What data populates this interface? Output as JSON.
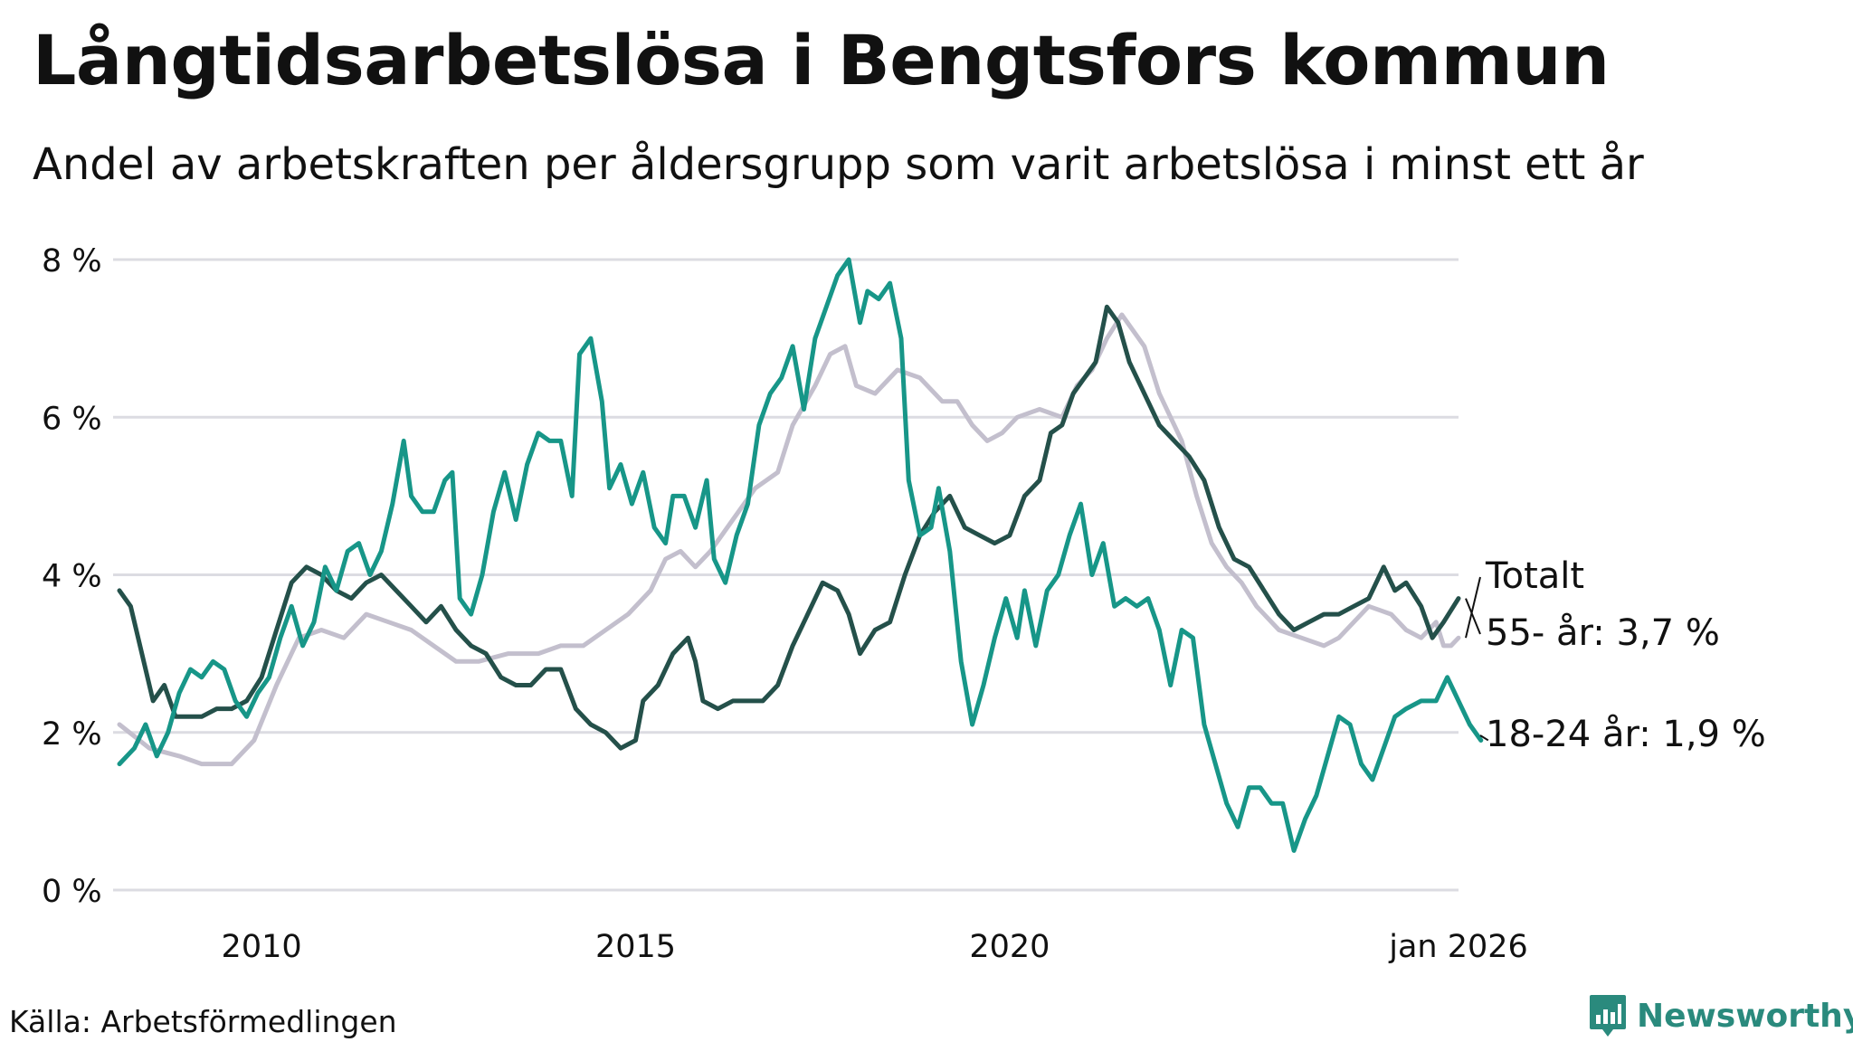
{
  "title": "Långtidsarbetslösa i Bengtsfors kommun",
  "subtitle": "Andel av arbetskraften per åldersgrupp som varit arbetslösa i minst ett år",
  "source": "Källa: Arbetsförmedlingen",
  "brand": "Newsworthy",
  "colors": {
    "total": "#c3bfcd",
    "older": "#24504a",
    "young": "#179688",
    "grid": "#dcdce2"
  },
  "chart_data": {
    "type": "line",
    "ylim": [
      0,
      8
    ],
    "xlim": [
      2008.1,
      2026.0
    ],
    "y_ticks": [
      0,
      2,
      4,
      6,
      8
    ],
    "y_tick_labels": [
      "0 %",
      "2 %",
      "4 %",
      "6 %",
      "8 %"
    ],
    "x_ticks": [
      2010,
      2015,
      2020,
      2026.0
    ],
    "x_tick_labels": [
      "2010",
      "2015",
      "2020",
      "jan 2026"
    ],
    "grid": true,
    "series": [
      {
        "name": "Totalt",
        "label": "Totalt",
        "color": "#c3bfcd",
        "points": [
          [
            2008.1,
            2.1
          ],
          [
            2008.5,
            1.8
          ],
          [
            2008.9,
            1.7
          ],
          [
            2009.2,
            1.6
          ],
          [
            2009.6,
            1.6
          ],
          [
            2009.9,
            1.9
          ],
          [
            2010.2,
            2.6
          ],
          [
            2010.5,
            3.2
          ],
          [
            2010.8,
            3.3
          ],
          [
            2011.1,
            3.2
          ],
          [
            2011.4,
            3.5
          ],
          [
            2011.7,
            3.4
          ],
          [
            2012.0,
            3.3
          ],
          [
            2012.3,
            3.1
          ],
          [
            2012.6,
            2.9
          ],
          [
            2012.9,
            2.9
          ],
          [
            2013.3,
            3.0
          ],
          [
            2013.7,
            3.0
          ],
          [
            2014.0,
            3.1
          ],
          [
            2014.3,
            3.1
          ],
          [
            2014.6,
            3.3
          ],
          [
            2014.9,
            3.5
          ],
          [
            2015.2,
            3.8
          ],
          [
            2015.4,
            4.2
          ],
          [
            2015.6,
            4.3
          ],
          [
            2015.8,
            4.1
          ],
          [
            2016.0,
            4.3
          ],
          [
            2016.3,
            4.7
          ],
          [
            2016.6,
            5.1
          ],
          [
            2016.9,
            5.3
          ],
          [
            2017.1,
            5.9
          ],
          [
            2017.4,
            6.4
          ],
          [
            2017.6,
            6.8
          ],
          [
            2017.8,
            6.9
          ],
          [
            2017.95,
            6.4
          ],
          [
            2018.2,
            6.3
          ],
          [
            2018.5,
            6.6
          ],
          [
            2018.8,
            6.5
          ],
          [
            2019.1,
            6.2
          ],
          [
            2019.3,
            6.2
          ],
          [
            2019.5,
            5.9
          ],
          [
            2019.7,
            5.7
          ],
          [
            2019.9,
            5.8
          ],
          [
            2020.1,
            6.0
          ],
          [
            2020.4,
            6.1
          ],
          [
            2020.7,
            6.0
          ],
          [
            2020.9,
            6.4
          ],
          [
            2021.1,
            6.6
          ],
          [
            2021.3,
            7.0
          ],
          [
            2021.5,
            7.3
          ],
          [
            2021.8,
            6.9
          ],
          [
            2022.0,
            6.3
          ],
          [
            2022.3,
            5.7
          ],
          [
            2022.5,
            5.0
          ],
          [
            2022.7,
            4.4
          ],
          [
            2022.9,
            4.1
          ],
          [
            2023.1,
            3.9
          ],
          [
            2023.3,
            3.6
          ],
          [
            2023.6,
            3.3
          ],
          [
            2023.9,
            3.2
          ],
          [
            2024.2,
            3.1
          ],
          [
            2024.4,
            3.2
          ],
          [
            2024.6,
            3.4
          ],
          [
            2024.8,
            3.6
          ],
          [
            2025.1,
            3.5
          ],
          [
            2025.3,
            3.3
          ],
          [
            2025.5,
            3.2
          ],
          [
            2025.7,
            3.4
          ],
          [
            2025.8,
            3.1
          ],
          [
            2025.9,
            3.1
          ],
          [
            2026.0,
            3.2
          ]
        ]
      },
      {
        "name": "55- år",
        "label": "55- år: 3,7 %",
        "color": "#24504a",
        "points": [
          [
            2008.1,
            3.8
          ],
          [
            2008.25,
            3.6
          ],
          [
            2008.4,
            3.0
          ],
          [
            2008.55,
            2.4
          ],
          [
            2008.7,
            2.6
          ],
          [
            2008.85,
            2.2
          ],
          [
            2009.0,
            2.2
          ],
          [
            2009.2,
            2.2
          ],
          [
            2009.4,
            2.3
          ],
          [
            2009.6,
            2.3
          ],
          [
            2009.8,
            2.4
          ],
          [
            2010.0,
            2.7
          ],
          [
            2010.2,
            3.3
          ],
          [
            2010.4,
            3.9
          ],
          [
            2010.6,
            4.1
          ],
          [
            2010.8,
            4.0
          ],
          [
            2011.0,
            3.8
          ],
          [
            2011.2,
            3.7
          ],
          [
            2011.4,
            3.9
          ],
          [
            2011.6,
            4.0
          ],
          [
            2011.8,
            3.8
          ],
          [
            2012.0,
            3.6
          ],
          [
            2012.2,
            3.4
          ],
          [
            2012.4,
            3.6
          ],
          [
            2012.6,
            3.3
          ],
          [
            2012.8,
            3.1
          ],
          [
            2013.0,
            3.0
          ],
          [
            2013.2,
            2.7
          ],
          [
            2013.4,
            2.6
          ],
          [
            2013.6,
            2.6
          ],
          [
            2013.8,
            2.8
          ],
          [
            2014.0,
            2.8
          ],
          [
            2014.2,
            2.3
          ],
          [
            2014.4,
            2.1
          ],
          [
            2014.6,
            2.0
          ],
          [
            2014.8,
            1.8
          ],
          [
            2015.0,
            1.9
          ],
          [
            2015.1,
            2.4
          ],
          [
            2015.3,
            2.6
          ],
          [
            2015.5,
            3.0
          ],
          [
            2015.7,
            3.2
          ],
          [
            2015.8,
            2.9
          ],
          [
            2015.9,
            2.4
          ],
          [
            2016.1,
            2.3
          ],
          [
            2016.3,
            2.4
          ],
          [
            2016.5,
            2.4
          ],
          [
            2016.7,
            2.4
          ],
          [
            2016.9,
            2.6
          ],
          [
            2017.1,
            3.1
          ],
          [
            2017.3,
            3.5
          ],
          [
            2017.5,
            3.9
          ],
          [
            2017.7,
            3.8
          ],
          [
            2017.85,
            3.5
          ],
          [
            2018.0,
            3.0
          ],
          [
            2018.2,
            3.3
          ],
          [
            2018.4,
            3.4
          ],
          [
            2018.6,
            4.0
          ],
          [
            2018.8,
            4.5
          ],
          [
            2019.0,
            4.8
          ],
          [
            2019.2,
            5.0
          ],
          [
            2019.4,
            4.6
          ],
          [
            2019.6,
            4.5
          ],
          [
            2019.8,
            4.4
          ],
          [
            2020.0,
            4.5
          ],
          [
            2020.2,
            5.0
          ],
          [
            2020.4,
            5.2
          ],
          [
            2020.55,
            5.8
          ],
          [
            2020.7,
            5.9
          ],
          [
            2020.85,
            6.3
          ],
          [
            2021.0,
            6.5
          ],
          [
            2021.15,
            6.7
          ],
          [
            2021.3,
            7.4
          ],
          [
            2021.45,
            7.2
          ],
          [
            2021.6,
            6.7
          ],
          [
            2021.8,
            6.3
          ],
          [
            2022.0,
            5.9
          ],
          [
            2022.2,
            5.7
          ],
          [
            2022.4,
            5.5
          ],
          [
            2022.6,
            5.2
          ],
          [
            2022.8,
            4.6
          ],
          [
            2023.0,
            4.2
          ],
          [
            2023.2,
            4.1
          ],
          [
            2023.4,
            3.8
          ],
          [
            2023.6,
            3.5
          ],
          [
            2023.8,
            3.3
          ],
          [
            2024.0,
            3.4
          ],
          [
            2024.2,
            3.5
          ],
          [
            2024.4,
            3.5
          ],
          [
            2024.6,
            3.6
          ],
          [
            2024.8,
            3.7
          ],
          [
            2025.0,
            4.1
          ],
          [
            2025.15,
            3.8
          ],
          [
            2025.3,
            3.9
          ],
          [
            2025.5,
            3.6
          ],
          [
            2025.65,
            3.2
          ],
          [
            2025.8,
            3.4
          ],
          [
            2026.0,
            3.7
          ]
        ]
      },
      {
        "name": "18-24 år",
        "label": "18-24 år: 1,9 %",
        "color": "#179688",
        "points": [
          [
            2008.1,
            1.6
          ],
          [
            2008.3,
            1.8
          ],
          [
            2008.45,
            2.1
          ],
          [
            2008.6,
            1.7
          ],
          [
            2008.75,
            2.0
          ],
          [
            2008.9,
            2.5
          ],
          [
            2009.05,
            2.8
          ],
          [
            2009.2,
            2.7
          ],
          [
            2009.35,
            2.9
          ],
          [
            2009.5,
            2.8
          ],
          [
            2009.65,
            2.4
          ],
          [
            2009.8,
            2.2
          ],
          [
            2009.95,
            2.5
          ],
          [
            2010.1,
            2.7
          ],
          [
            2010.25,
            3.2
          ],
          [
            2010.4,
            3.6
          ],
          [
            2010.55,
            3.1
          ],
          [
            2010.7,
            3.4
          ],
          [
            2010.85,
            4.1
          ],
          [
            2011.0,
            3.8
          ],
          [
            2011.15,
            4.3
          ],
          [
            2011.3,
            4.4
          ],
          [
            2011.45,
            4.0
          ],
          [
            2011.6,
            4.3
          ],
          [
            2011.75,
            4.9
          ],
          [
            2011.9,
            5.7
          ],
          [
            2012.0,
            5.0
          ],
          [
            2012.15,
            4.8
          ],
          [
            2012.3,
            4.8
          ],
          [
            2012.45,
            5.2
          ],
          [
            2012.55,
            5.3
          ],
          [
            2012.65,
            3.7
          ],
          [
            2012.8,
            3.5
          ],
          [
            2012.95,
            4.0
          ],
          [
            2013.1,
            4.8
          ],
          [
            2013.25,
            5.3
          ],
          [
            2013.4,
            4.7
          ],
          [
            2013.55,
            5.4
          ],
          [
            2013.7,
            5.8
          ],
          [
            2013.85,
            5.7
          ],
          [
            2014.0,
            5.7
          ],
          [
            2014.15,
            5.0
          ],
          [
            2014.25,
            6.8
          ],
          [
            2014.4,
            7.0
          ],
          [
            2014.55,
            6.2
          ],
          [
            2014.65,
            5.1
          ],
          [
            2014.8,
            5.4
          ],
          [
            2014.95,
            4.9
          ],
          [
            2015.1,
            5.3
          ],
          [
            2015.25,
            4.6
          ],
          [
            2015.4,
            4.4
          ],
          [
            2015.5,
            5.0
          ],
          [
            2015.65,
            5.0
          ],
          [
            2015.8,
            4.6
          ],
          [
            2015.95,
            5.2
          ],
          [
            2016.05,
            4.2
          ],
          [
            2016.2,
            3.9
          ],
          [
            2016.35,
            4.5
          ],
          [
            2016.5,
            4.9
          ],
          [
            2016.65,
            5.9
          ],
          [
            2016.8,
            6.3
          ],
          [
            2016.95,
            6.5
          ],
          [
            2017.1,
            6.9
          ],
          [
            2017.25,
            6.1
          ],
          [
            2017.4,
            7.0
          ],
          [
            2017.55,
            7.4
          ],
          [
            2017.7,
            7.8
          ],
          [
            2017.85,
            8.0
          ],
          [
            2018.0,
            7.2
          ],
          [
            2018.1,
            7.6
          ],
          [
            2018.25,
            7.5
          ],
          [
            2018.4,
            7.7
          ],
          [
            2018.55,
            7.0
          ],
          [
            2018.65,
            5.2
          ],
          [
            2018.8,
            4.5
          ],
          [
            2018.95,
            4.6
          ],
          [
            2019.05,
            5.1
          ],
          [
            2019.2,
            4.3
          ],
          [
            2019.35,
            2.9
          ],
          [
            2019.5,
            2.1
          ],
          [
            2019.65,
            2.6
          ],
          [
            2019.8,
            3.2
          ],
          [
            2019.95,
            3.7
          ],
          [
            2020.1,
            3.2
          ],
          [
            2020.2,
            3.8
          ],
          [
            2020.35,
            3.1
          ],
          [
            2020.5,
            3.8
          ],
          [
            2020.65,
            4.0
          ],
          [
            2020.8,
            4.5
          ],
          [
            2020.95,
            4.9
          ],
          [
            2021.1,
            4.0
          ],
          [
            2021.25,
            4.4
          ],
          [
            2021.4,
            3.6
          ],
          [
            2021.55,
            3.7
          ],
          [
            2021.7,
            3.6
          ],
          [
            2021.85,
            3.7
          ],
          [
            2022.0,
            3.3
          ],
          [
            2022.15,
            2.6
          ],
          [
            2022.3,
            3.3
          ],
          [
            2022.45,
            3.2
          ],
          [
            2022.6,
            2.1
          ],
          [
            2022.75,
            1.6
          ],
          [
            2022.9,
            1.1
          ],
          [
            2023.05,
            0.8
          ],
          [
            2023.2,
            1.3
          ],
          [
            2023.35,
            1.3
          ],
          [
            2023.5,
            1.1
          ],
          [
            2023.65,
            1.1
          ],
          [
            2023.8,
            0.5
          ],
          [
            2023.95,
            0.9
          ],
          [
            2024.1,
            1.2
          ],
          [
            2024.25,
            1.7
          ],
          [
            2024.4,
            2.2
          ],
          [
            2024.55,
            2.1
          ],
          [
            2024.7,
            1.6
          ],
          [
            2024.85,
            1.4
          ],
          [
            2025.0,
            1.8
          ],
          [
            2025.15,
            2.2
          ],
          [
            2025.3,
            2.3
          ],
          [
            2025.5,
            2.4
          ],
          [
            2025.7,
            2.4
          ],
          [
            2025.85,
            2.7
          ],
          [
            2026.0,
            2.4
          ],
          [
            2026.15,
            2.1
          ],
          [
            2026.3,
            1.9
          ]
        ]
      }
    ]
  }
}
